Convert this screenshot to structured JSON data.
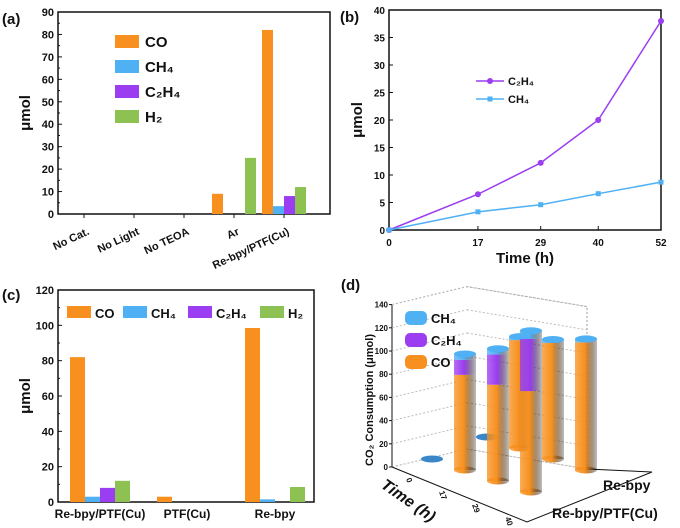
{
  "colors": {
    "CO": "#f7901e",
    "CH4": "#4fb0f4",
    "C2H4": "#9b3df0",
    "H2": "#8dc152",
    "axis": "#111111"
  },
  "chart_data": [
    {
      "panel": "(a)",
      "type": "bar",
      "ylabel": "μmol",
      "ylim": [
        0,
        90
      ],
      "yticks": [
        0,
        10,
        20,
        30,
        40,
        50,
        60,
        70,
        80,
        90
      ],
      "categories": [
        "No Cat.",
        "No Light",
        "No TEOA",
        "Ar",
        "Re-bpy/PTF(Cu)"
      ],
      "legend_position": "top-left",
      "series": [
        {
          "key": "CO",
          "name": "CO",
          "values": [
            0,
            0,
            0,
            9,
            82
          ]
        },
        {
          "key": "CH4",
          "name": "CH₄",
          "values": [
            0,
            0,
            0,
            0,
            3.5
          ]
        },
        {
          "key": "C2H4",
          "name": "C₂H₄",
          "values": [
            0,
            0,
            0,
            0,
            8
          ]
        },
        {
          "key": "H2",
          "name": "H₂",
          "values": [
            0,
            0,
            0,
            25,
            12
          ]
        }
      ]
    },
    {
      "panel": "(b)",
      "type": "line",
      "xlabel": "Time (h)",
      "ylabel": "μmol",
      "xlim": [
        0,
        52
      ],
      "ylim": [
        0,
        40
      ],
      "x": [
        0,
        17,
        29,
        40,
        52
      ],
      "yticks": [
        0,
        5,
        10,
        15,
        20,
        25,
        30,
        35,
        40
      ],
      "legend_position": "center-left",
      "series": [
        {
          "key": "C2H4",
          "name": "C₂H₄",
          "marker": "circle",
          "values": [
            0,
            6.5,
            12.2,
            20,
            38
          ]
        },
        {
          "key": "CH4",
          "name": "CH₄",
          "marker": "square",
          "values": [
            0,
            3.3,
            4.6,
            6.6,
            8.7
          ]
        }
      ]
    },
    {
      "panel": "(c)",
      "type": "bar",
      "ylabel": "μmol",
      "ylim": [
        0,
        120
      ],
      "yticks": [
        0,
        20,
        40,
        60,
        80,
        100,
        120
      ],
      "categories": [
        "Re-bpy/PTF(Cu)",
        "PTF(Cu)",
        "Re-bpy"
      ],
      "legend_position": "top",
      "series": [
        {
          "key": "CO",
          "name": "CO",
          "values": [
            82,
            3,
            98.5
          ]
        },
        {
          "key": "CH4",
          "name": "CH₄",
          "values": [
            3,
            0,
            1.5
          ]
        },
        {
          "key": "C2H4",
          "name": "C₂H₄",
          "values": [
            8,
            0,
            0
          ]
        },
        {
          "key": "H2",
          "name": "H₂",
          "values": [
            12,
            0,
            8.5
          ]
        }
      ]
    },
    {
      "panel": "(d)",
      "type": "bar3d",
      "zlabel": "CO₂ Consumption (μmol)",
      "xlabel": "Time (h)",
      "zlim": [
        0,
        140
      ],
      "zticks": [
        0,
        20,
        40,
        60,
        80,
        100,
        120,
        140
      ],
      "times": [
        0,
        17,
        29,
        40
      ],
      "rows": [
        "Re-bpy/PTF(Cu)",
        "Re-bpy"
      ],
      "legend_position": "top-left",
      "legend": [
        {
          "key": "CH4",
          "name": "CH₄"
        },
        {
          "key": "C2H4",
          "name": "C₂H₄"
        },
        {
          "key": "CO",
          "name": "CO"
        }
      ],
      "stack_order": [
        "CO",
        "C2H4",
        "CH4"
      ],
      "data": {
        "Re-bpy/PTF(Cu)": {
          "CO": [
            0,
            82,
            83,
            87
          ],
          "C2H4": [
            0,
            13,
            26,
            45
          ],
          "CH4": [
            1,
            5,
            5,
            7
          ]
        },
        "Re-bpy": {
          "CO": [
            0,
            93,
            100,
            110
          ],
          "C2H4": [
            0,
            0,
            0,
            0
          ],
          "CH4": [
            1,
            3,
            3,
            3
          ]
        }
      }
    }
  ]
}
